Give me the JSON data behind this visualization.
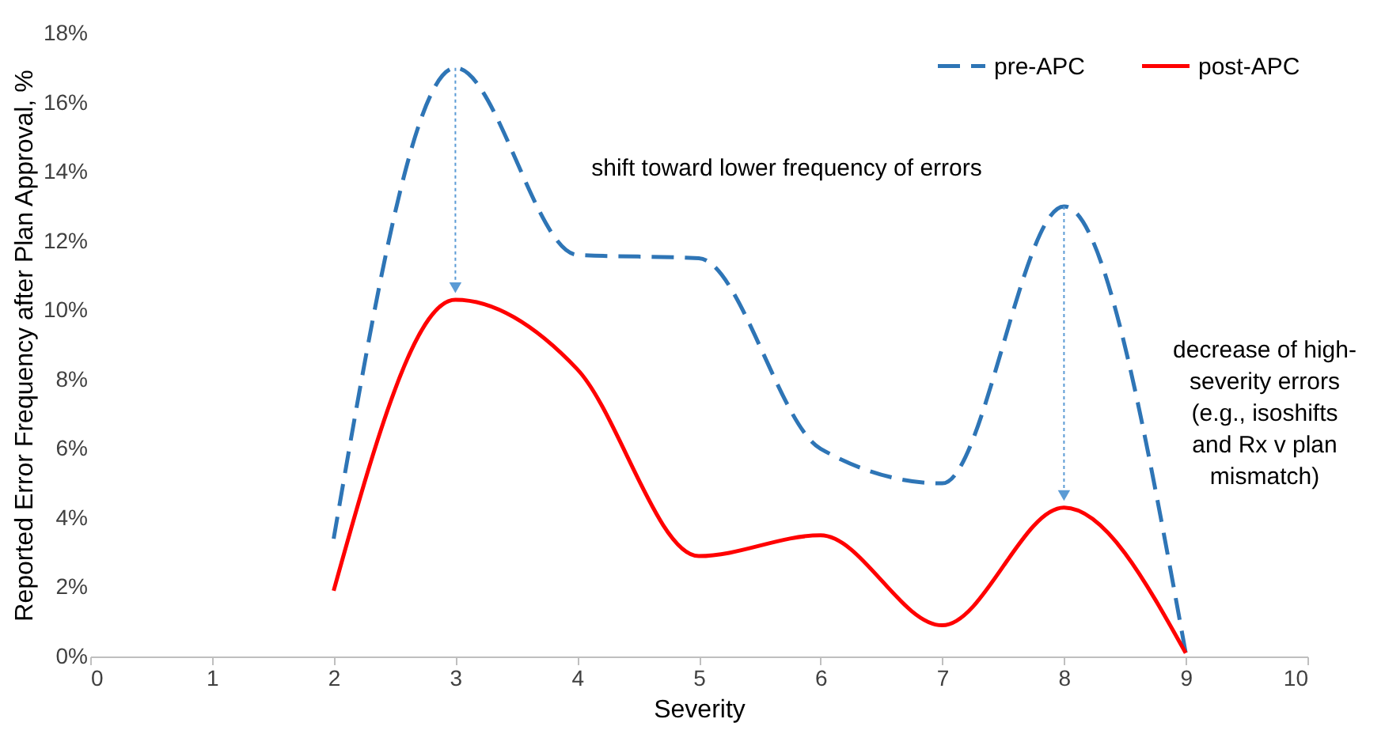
{
  "chart_data": {
    "type": "line",
    "xlabel": "Severity",
    "ylabel": "Reported Error Frequency after Plan Approval, %",
    "x": [
      2,
      3,
      4,
      5,
      6,
      7,
      8,
      9
    ],
    "series": [
      {
        "name": "pre-APC",
        "color": "#2e75b6",
        "line_style": "dashed",
        "values": [
          3.4,
          17.0,
          11.6,
          11.5,
          6.0,
          5.0,
          13.0,
          0.1
        ]
      },
      {
        "name": "post-APC",
        "color": "#ff0000",
        "line_style": "solid",
        "values": [
          1.9,
          10.3,
          8.3,
          2.9,
          3.5,
          0.9,
          4.3,
          0.1
        ]
      }
    ],
    "xlim": [
      0,
      10
    ],
    "xticks": [
      0,
      1,
      2,
      3,
      4,
      5,
      6,
      7,
      8,
      9,
      10
    ],
    "ylim": [
      0,
      18
    ],
    "yticks": [
      {
        "value": 0,
        "label": "0%"
      },
      {
        "value": 2,
        "label": "2%"
      },
      {
        "value": 4,
        "label": "4%"
      },
      {
        "value": 6,
        "label": "6%"
      },
      {
        "value": 8,
        "label": "8%"
      },
      {
        "value": 10,
        "label": "10%"
      },
      {
        "value": 12,
        "label": "12%"
      },
      {
        "value": 14,
        "label": "14%"
      },
      {
        "value": 16,
        "label": "16%"
      },
      {
        "value": 18,
        "label": "18%"
      }
    ],
    "grid": false,
    "legend": "top right",
    "marker": "none",
    "annotations": [
      "shift toward lower frequency of errors",
      "decrease of high-severity errors (e.g., isoshifts and Rx v plan mismatch)"
    ]
  }
}
